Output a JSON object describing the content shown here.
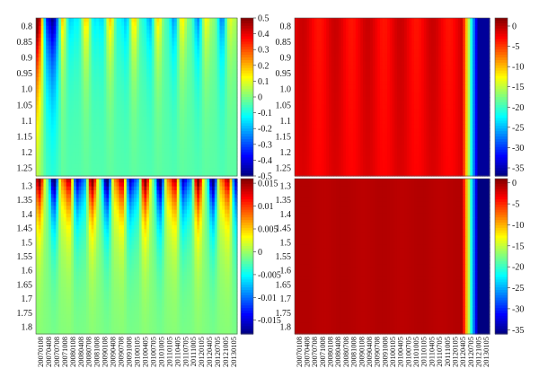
{
  "chart_data": [
    {
      "type": "heatmap",
      "title": "",
      "x": [
        "20070108",
        "20070408",
        "20070708",
        "20071008",
        "20080108",
        "20080408",
        "20080708",
        "20081008",
        "20090108",
        "20090408",
        "20090708",
        "20091008",
        "20100105",
        "20100405",
        "20100705",
        "20101005",
        "20110105",
        "20110405",
        "20110705",
        "20111005",
        "20120105",
        "20120405",
        "20120705",
        "20121005",
        "20130105"
      ],
      "y": [
        "0.8",
        "0.85",
        "0.9",
        "0.95",
        "1.0",
        "1.05",
        "1.1",
        "1.15",
        "1.2",
        "1.25"
      ],
      "colorbar": {
        "ticks": [
          "0.5",
          "0.4",
          "0.3",
          "0.2",
          "0.1",
          "0",
          "-0.1",
          "-0.2",
          "-0.3",
          "-0.4",
          "-0.5"
        ],
        "range": [
          -0.5,
          0.5
        ]
      },
      "pattern": "diverging; strongly positive (red) at earliest dates for low moneyness, alternating blue/yellow-red vertical bands across dates that fade toward zero (green-cyan) as moneyness increases"
    },
    {
      "type": "heatmap",
      "title": "",
      "x": [
        "20070108",
        "20070408",
        "20070708",
        "20071008",
        "20080108",
        "20080408",
        "20080708",
        "20081008",
        "20090108",
        "20090408",
        "20090708",
        "20091008",
        "20100105",
        "20100405",
        "20100705",
        "20101005",
        "20110105",
        "20110405",
        "20110705",
        "20111005",
        "20120105",
        "20120405",
        "20120705",
        "20121005",
        "20130105"
      ],
      "y": [
        "0.8",
        "0.85",
        "0.9",
        "0.95",
        "1.0",
        "1.05",
        "1.1",
        "1.15",
        "1.2",
        "1.25"
      ],
      "colorbar": {
        "ticks": [
          "0",
          "-5",
          "-10",
          "-15",
          "-20",
          "-25",
          "-30",
          "-35"
        ],
        "range": [
          -37,
          2
        ]
      },
      "pattern": "near-zero (red) almost everywhere with slight darker bands; sharp drop through orange/yellow/cyan to deep blue (about -35) at the last few dates"
    },
    {
      "type": "heatmap",
      "title": "",
      "x": [
        "20070108",
        "20070408",
        "20070708",
        "20071008",
        "20080108",
        "20080408",
        "20080708",
        "20081008",
        "20090108",
        "20090408",
        "20090708",
        "20091008",
        "20100105",
        "20100405",
        "20100705",
        "20101005",
        "20110105",
        "20110405",
        "20110705",
        "20111005",
        "20120105",
        "20120405",
        "20120705",
        "20121005",
        "20130105"
      ],
      "y": [
        "1.3",
        "1.35",
        "1.4",
        "1.45",
        "1.5",
        "1.55",
        "1.6",
        "1.65",
        "1.7",
        "1.75",
        "1.8"
      ],
      "colorbar": {
        "ticks": [
          "0.015",
          "0.01",
          "0.005",
          "0",
          "-0.005",
          "-0.01",
          "-0.015"
        ],
        "range": [
          -0.018,
          0.016
        ]
      },
      "pattern": "diverging; alternating blue and red/yellow bands at low moneyness (1.3-1.45) across dates, fading to near-zero green for higher moneyness"
    },
    {
      "type": "heatmap",
      "title": "",
      "x": [
        "20070108",
        "20070408",
        "20070708",
        "20071008",
        "20080108",
        "20080408",
        "20080708",
        "20081008",
        "20090108",
        "20090408",
        "20090708",
        "20091008",
        "20100105",
        "20100405",
        "20100705",
        "20101005",
        "20110105",
        "20110405",
        "20110705",
        "20111005",
        "20120105",
        "20120405",
        "20120705",
        "20121005",
        "20130105"
      ],
      "y": [
        "1.3",
        "1.35",
        "1.4",
        "1.45",
        "1.5",
        "1.55",
        "1.6",
        "1.65",
        "1.7",
        "1.75",
        "1.8"
      ],
      "colorbar": {
        "ticks": [
          "0",
          "-5",
          "-10",
          "-15",
          "-20",
          "-25",
          "-30",
          "-35"
        ],
        "range": [
          -36,
          1
        ]
      },
      "pattern": "uniformly near-zero (dark red) across the grid, then a sharp drop to deep blue (about -35) at the last few dates"
    }
  ]
}
